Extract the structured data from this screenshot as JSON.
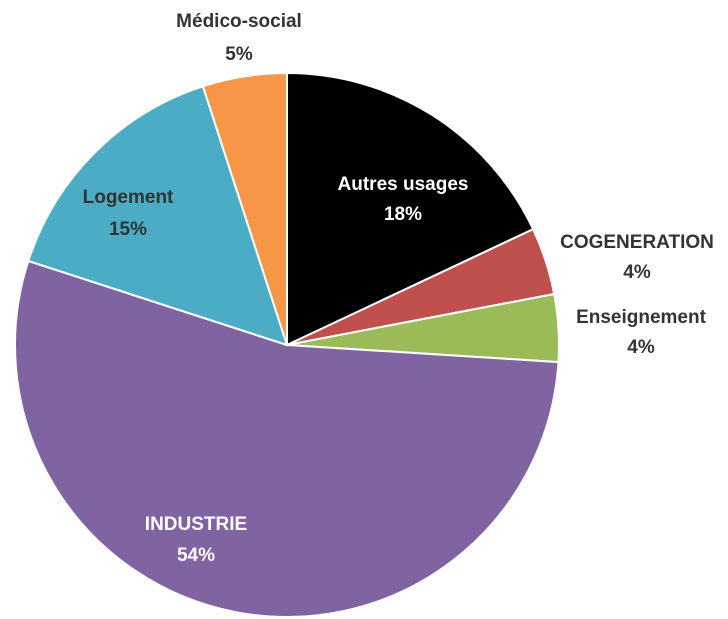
{
  "chart_data": {
    "type": "pie",
    "categories": [
      "Autres usages",
      "COGENERATION",
      "Enseignement",
      "INDUSTRIE",
      "Logement",
      "Médico-social"
    ],
    "values": [
      18,
      4,
      4,
      54,
      15,
      5
    ],
    "value_labels": [
      "18%",
      "4%",
      "4%",
      "54%",
      "15%",
      "5%"
    ],
    "colors": [
      "#000000",
      "#c0504d",
      "#9bbb59",
      "#8064a2",
      "#4bacc6",
      "#f79646"
    ]
  }
}
